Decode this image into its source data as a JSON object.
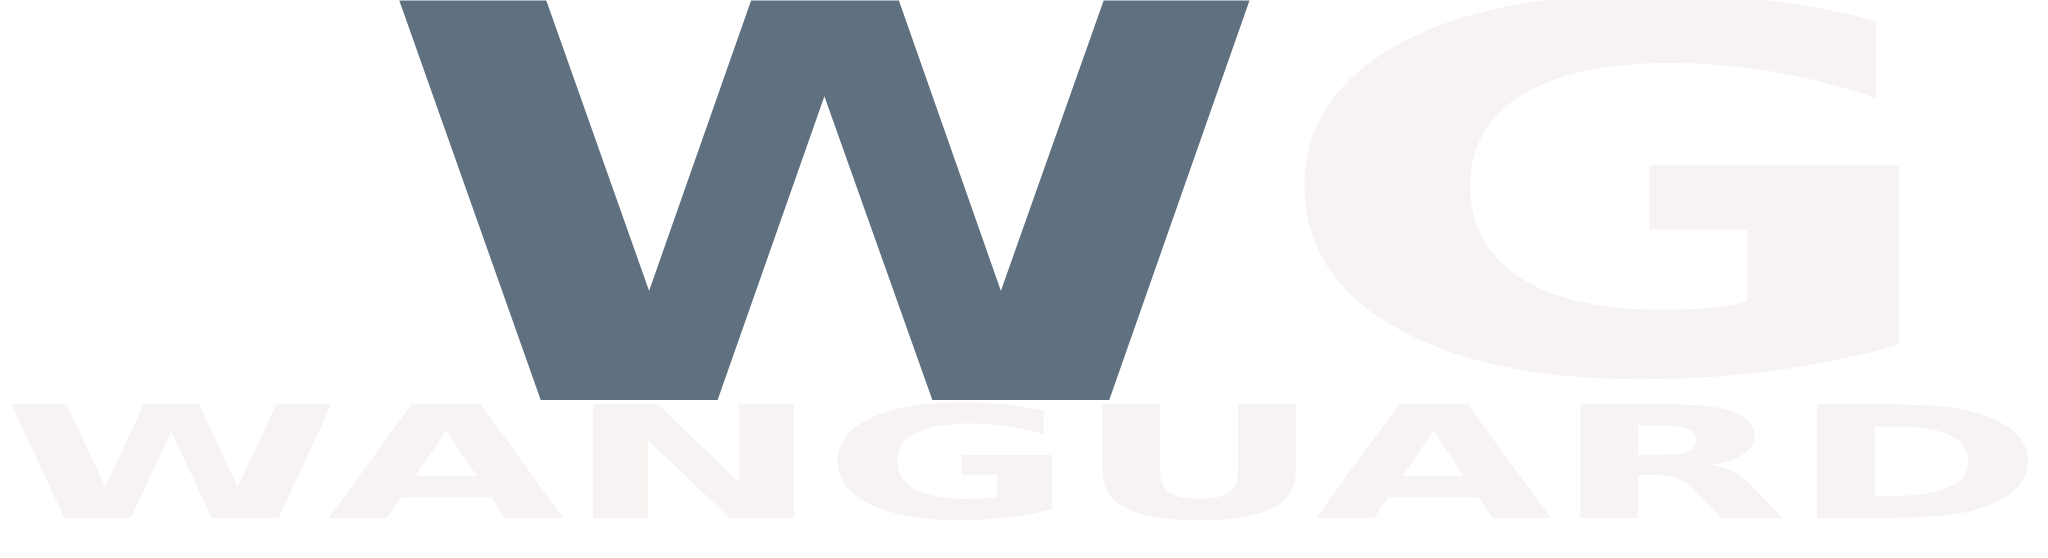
{
  "logo": {
    "monogram": [
      "W",
      "G"
    ],
    "wordmark": "WANGUARD"
  }
}
